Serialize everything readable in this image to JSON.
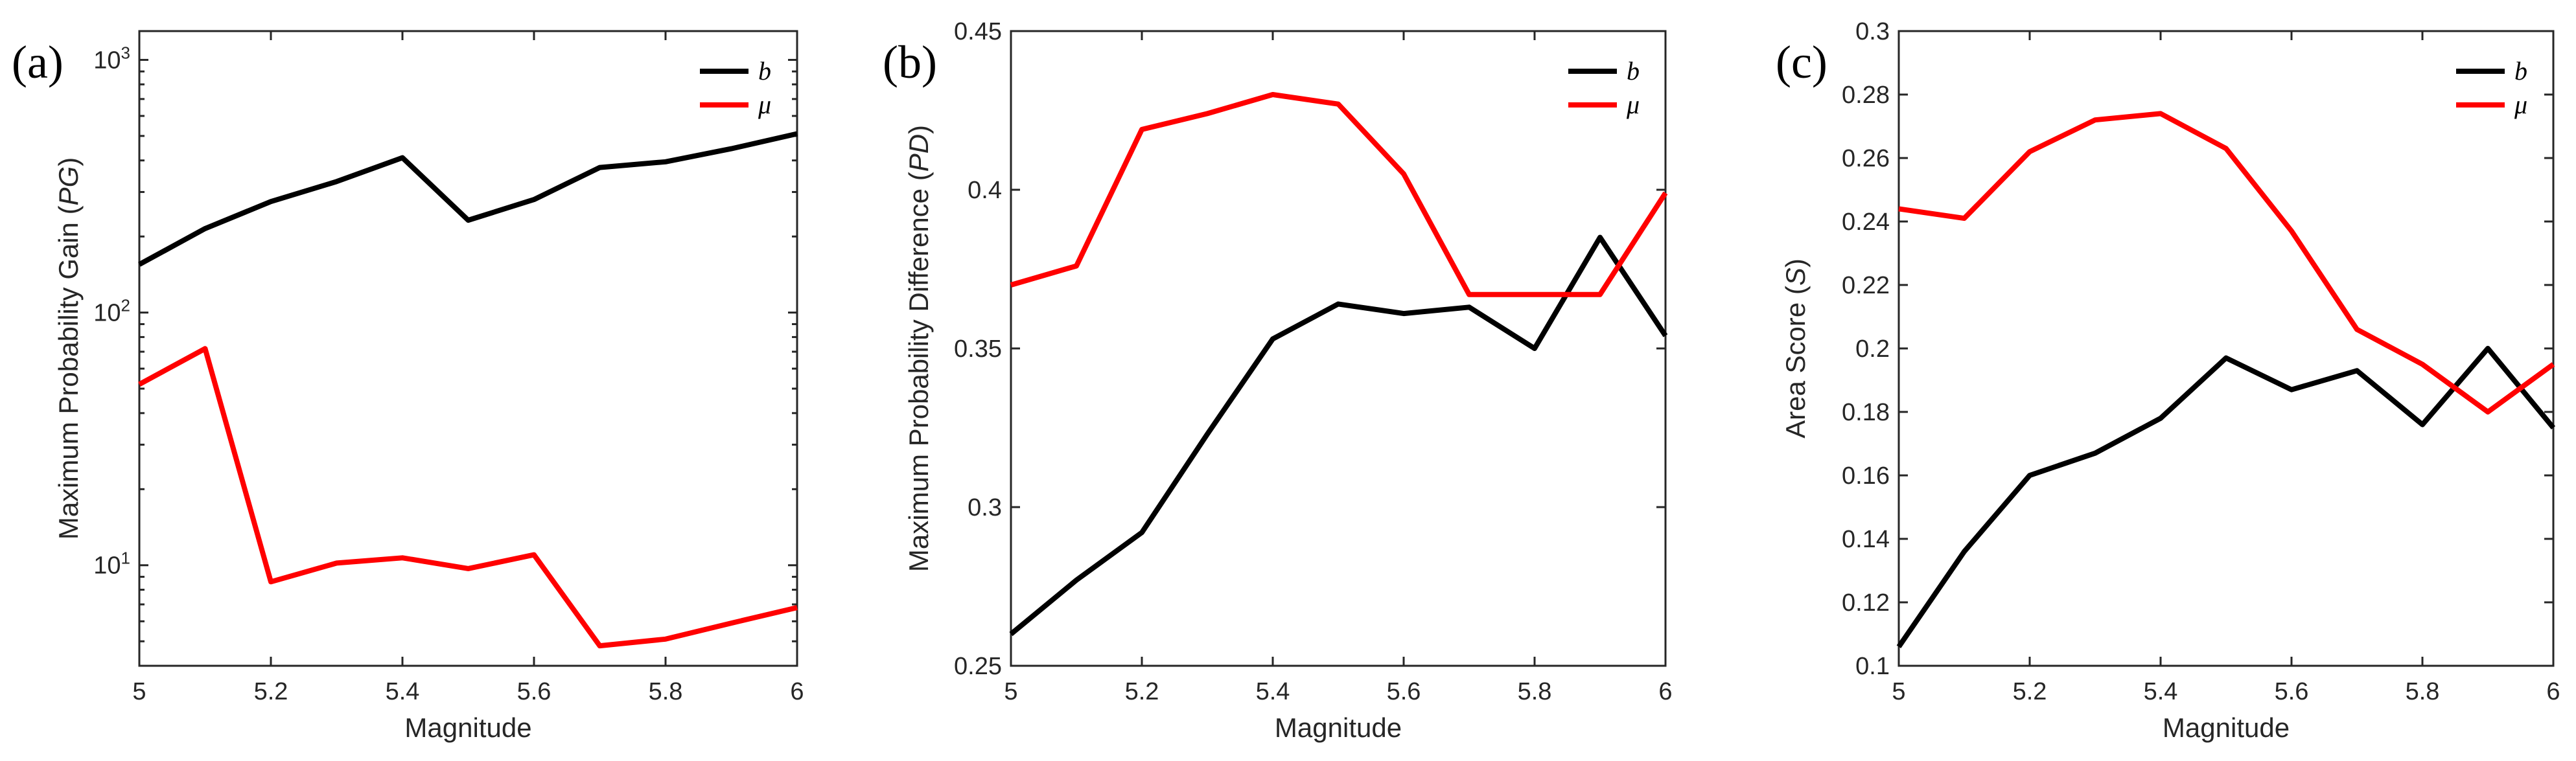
{
  "chart_data": [
    {
      "type": "line",
      "panel": "(a)",
      "title": "",
      "xlabel": "Magnitude",
      "ylabel": "Maximum Probability Gain (PG)",
      "ylabel_parts": [
        "Maximum Probability Gain (",
        "PG",
        ")"
      ],
      "yscale": "log",
      "xlim": [
        5,
        6
      ],
      "ylim": [
        4,
        1300
      ],
      "xticks": [
        5,
        5.2,
        5.4,
        5.6,
        5.8,
        6
      ],
      "xtick_labels": [
        "5",
        "5.2",
        "5.4",
        "5.6",
        "5.8",
        "6"
      ],
      "yticks": [
        10,
        100,
        1000
      ],
      "ytick_labels": [
        {
          "base": "10",
          "exp": "1"
        },
        {
          "base": "10",
          "exp": "2"
        },
        {
          "base": "10",
          "exp": "3"
        }
      ],
      "legend": "top-right",
      "x": [
        5.0,
        5.1,
        5.2,
        5.3,
        5.4,
        5.5,
        5.6,
        5.7,
        5.8,
        5.9,
        6.0
      ],
      "series": [
        {
          "name": "b",
          "color": "#000000",
          "values": [
            155,
            215,
            275,
            330,
            410,
            232,
            280,
            375,
            395,
            445,
            510
          ]
        },
        {
          "name": "μ",
          "color": "#ff0000",
          "values": [
            52,
            72,
            8.6,
            10.2,
            10.7,
            9.7,
            11.0,
            4.8,
            5.1,
            5.9,
            6.8
          ]
        }
      ]
    },
    {
      "type": "line",
      "panel": "(b)",
      "title": "",
      "xlabel": "Magnitude",
      "ylabel": "Maximum Probability Difference (PD)",
      "ylabel_parts": [
        "Maximum Probability Difference (",
        "PD",
        ")"
      ],
      "yscale": "linear",
      "xlim": [
        5,
        6
      ],
      "ylim": [
        0.25,
        0.45
      ],
      "xticks": [
        5,
        5.2,
        5.4,
        5.6,
        5.8,
        6
      ],
      "xtick_labels": [
        "5",
        "5.2",
        "5.4",
        "5.6",
        "5.8",
        "6"
      ],
      "yticks": [
        0.25,
        0.3,
        0.35,
        0.4,
        0.45
      ],
      "ytick_labels": [
        "0.25",
        "0.3",
        "0.35",
        "0.4",
        "0.45"
      ],
      "legend": "top-right",
      "x": [
        5.0,
        5.1,
        5.2,
        5.3,
        5.4,
        5.5,
        5.6,
        5.7,
        5.8,
        5.9,
        6.0
      ],
      "series": [
        {
          "name": "b",
          "color": "#000000",
          "values": [
            0.26,
            0.277,
            0.292,
            0.323,
            0.353,
            0.364,
            0.361,
            0.363,
            0.35,
            0.385,
            0.354
          ]
        },
        {
          "name": "μ",
          "color": "#ff0000",
          "values": [
            0.37,
            0.376,
            0.419,
            0.424,
            0.43,
            0.427,
            0.405,
            0.367,
            0.367,
            0.367,
            0.399
          ]
        }
      ]
    },
    {
      "type": "line",
      "panel": "(c)",
      "title": "",
      "xlabel": "Magnitude",
      "ylabel": "Area Score (S)",
      "ylabel_parts": [
        "Area Score (",
        "S",
        ")"
      ],
      "yscale": "linear",
      "xlim": [
        5,
        6
      ],
      "ylim": [
        0.1,
        0.3
      ],
      "xticks": [
        5,
        5.2,
        5.4,
        5.6,
        5.8,
        6
      ],
      "xtick_labels": [
        "5",
        "5.2",
        "5.4",
        "5.6",
        "5.8",
        "6"
      ],
      "yticks": [
        0.1,
        0.12,
        0.14,
        0.16,
        0.18,
        0.2,
        0.22,
        0.24,
        0.26,
        0.28,
        0.3
      ],
      "ytick_labels": [
        "0.1",
        "0.12",
        "0.14",
        "0.16",
        "0.18",
        "0.2",
        "0.22",
        "0.24",
        "0.26",
        "0.28",
        "0.3"
      ],
      "legend": "top-right",
      "x": [
        5.0,
        5.1,
        5.2,
        5.3,
        5.4,
        5.5,
        5.6,
        5.7,
        5.8,
        5.9,
        6.0
      ],
      "series": [
        {
          "name": "b",
          "color": "#000000",
          "values": [
            0.106,
            0.136,
            0.16,
            0.167,
            0.178,
            0.197,
            0.187,
            0.193,
            0.176,
            0.2,
            0.175
          ]
        },
        {
          "name": "μ",
          "color": "#ff0000",
          "values": [
            0.244,
            0.241,
            0.262,
            0.272,
            0.274,
            0.263,
            0.237,
            0.206,
            0.195,
            0.18,
            0.195
          ]
        }
      ]
    }
  ]
}
